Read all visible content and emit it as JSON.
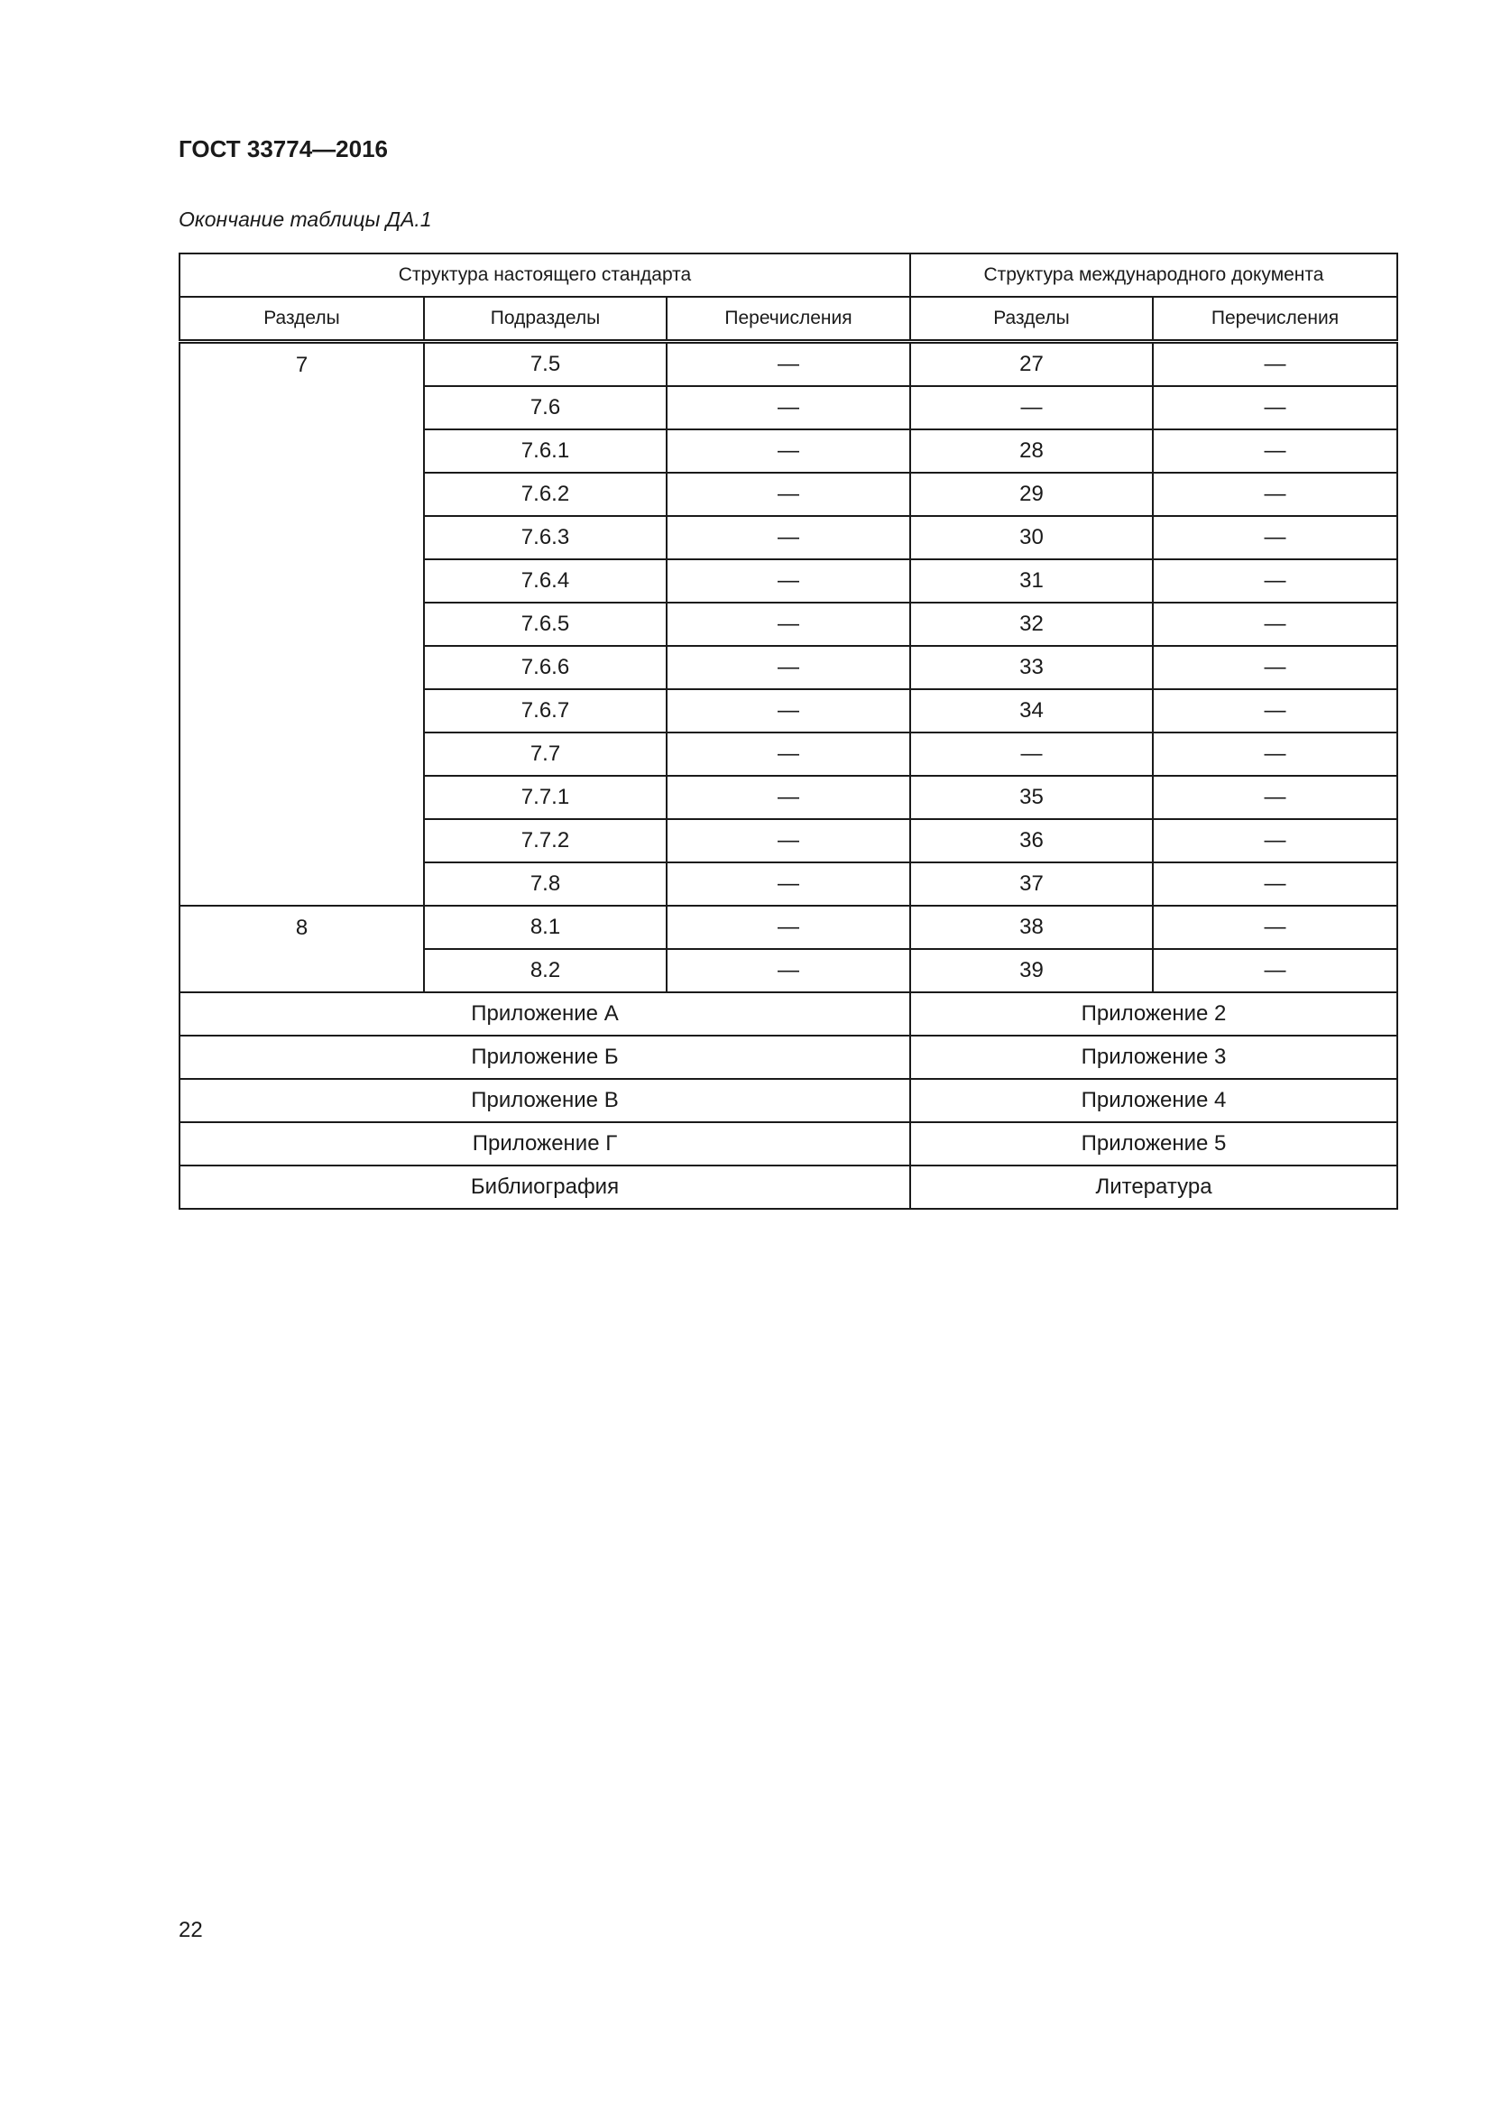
{
  "header": {
    "title": "ГОСТ 33774—2016"
  },
  "caption": "Окончание таблицы ДА.1",
  "table": {
    "group_headers": [
      "Структура настоящего стандарта",
      "Структура международного документа"
    ],
    "columns": [
      "Разделы",
      "Подразделы",
      "Перечисления",
      "Разделы",
      "Перечисления"
    ],
    "sections": [
      {
        "section": "7",
        "rows": [
          [
            "7.5",
            "—",
            "27",
            "—"
          ],
          [
            "7.6",
            "—",
            "—",
            "—"
          ],
          [
            "7.6.1",
            "—",
            "28",
            "—"
          ],
          [
            "7.6.2",
            "—",
            "29",
            "—"
          ],
          [
            "7.6.3",
            "—",
            "30",
            "—"
          ],
          [
            "7.6.4",
            "—",
            "31",
            "—"
          ],
          [
            "7.6.5",
            "—",
            "32",
            "—"
          ],
          [
            "7.6.6",
            "—",
            "33",
            "—"
          ],
          [
            "7.6.7",
            "—",
            "34",
            "—"
          ],
          [
            "7.7",
            "—",
            "—",
            "—"
          ],
          [
            "7.7.1",
            "—",
            "35",
            "—"
          ],
          [
            "7.7.2",
            "—",
            "36",
            "—"
          ],
          [
            "7.8",
            "—",
            "37",
            "—"
          ]
        ]
      },
      {
        "section": "8",
        "rows": [
          [
            "8.1",
            "—",
            "38",
            "—"
          ],
          [
            "8.2",
            "—",
            "39",
            "—"
          ]
        ]
      }
    ],
    "appendix_rows": [
      [
        "Приложение А",
        "Приложение 2"
      ],
      [
        "Приложение Б",
        "Приложение 3"
      ],
      [
        "Приложение В",
        "Приложение 4"
      ],
      [
        "Приложение Г",
        "Приложение 5"
      ],
      [
        "Библиография",
        "Литература"
      ]
    ]
  },
  "footer": {
    "page_number": "22"
  }
}
